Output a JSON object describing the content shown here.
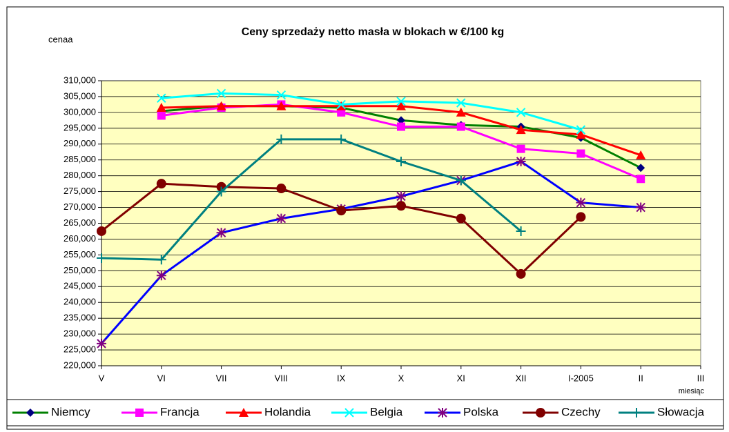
{
  "chart_data": {
    "type": "line",
    "title": "Ceny sprzedaży netto masła w blokach w €/100 kg",
    "ylabel": "cenaa",
    "xlabel": "miesiąc",
    "categories": [
      "V",
      "VI",
      "VII",
      "VIII",
      "IX",
      "X",
      "XI",
      "XII",
      "I-2005",
      "II",
      "III"
    ],
    "ylim": [
      220,
      310
    ],
    "yticks": [
      {
        "value": 220,
        "label": "220,000"
      },
      {
        "value": 225,
        "label": "225,000"
      },
      {
        "value": 230,
        "label": "230,000"
      },
      {
        "value": 235,
        "label": "235,000"
      },
      {
        "value": 240,
        "label": "240,000"
      },
      {
        "value": 245,
        "label": "245,000"
      },
      {
        "value": 250,
        "label": "250,000"
      },
      {
        "value": 255,
        "label": "255,000"
      },
      {
        "value": 260,
        "label": "260,000"
      },
      {
        "value": 265,
        "label": "265,000"
      },
      {
        "value": 270,
        "label": "270,000"
      },
      {
        "value": 275,
        "label": "275,000"
      },
      {
        "value": 280,
        "label": "280,000"
      },
      {
        "value": 285,
        "label": "285,000"
      },
      {
        "value": 290,
        "label": "290,000"
      },
      {
        "value": 295,
        "label": "295,000"
      },
      {
        "value": 300,
        "label": "300,000"
      },
      {
        "value": 305,
        "label": "305,000"
      },
      {
        "value": 310,
        "label": "310,000"
      }
    ],
    "grid": true,
    "series": [
      {
        "name": "Niemcy",
        "color": "#008000",
        "marker_color": "#000080",
        "marker": "diamond",
        "values": [
          null,
          300.4,
          302,
          302,
          301.5,
          297.5,
          296,
          295.5,
          292,
          282.5,
          null
        ]
      },
      {
        "name": "Francja",
        "color": "#FF00FF",
        "marker_color": "#FF00FF",
        "marker": "square",
        "values": [
          null,
          299,
          301.5,
          302.5,
          300,
          295.5,
          295.5,
          288.5,
          287,
          279,
          null
        ]
      },
      {
        "name": "Holandia",
        "color": "#FF0000",
        "marker_color": "#FF0000",
        "marker": "triangle",
        "values": [
          null,
          301.5,
          302,
          302,
          302,
          302,
          300,
          294.5,
          293,
          286.5,
          null
        ]
      },
      {
        "name": "Belgia",
        "color": "#00FFFF",
        "marker_color": "#00FFFF",
        "marker": "x",
        "values": [
          null,
          304.5,
          306,
          305.5,
          302.5,
          303.5,
          303,
          300,
          294.5,
          null,
          null
        ]
      },
      {
        "name": "Polska",
        "color": "#0000FF",
        "marker_color": "#800080",
        "marker": "star",
        "values": [
          227,
          248.5,
          262,
          266.5,
          269.5,
          273.5,
          278.5,
          284.5,
          271.5,
          270,
          null
        ]
      },
      {
        "name": "Czechy",
        "color": "#800000",
        "marker_color": "#800000",
        "marker": "circle",
        "values": [
          262.5,
          277.5,
          276.5,
          276,
          269,
          270.5,
          266.5,
          249,
          267,
          null,
          null
        ]
      },
      {
        "name": "Słowacja",
        "color": "#008080",
        "marker_color": "#008080",
        "marker": "plus",
        "values": [
          254,
          253.5,
          275,
          291.5,
          291.5,
          284.5,
          278.5,
          262.5,
          null,
          null,
          null
        ]
      }
    ]
  }
}
